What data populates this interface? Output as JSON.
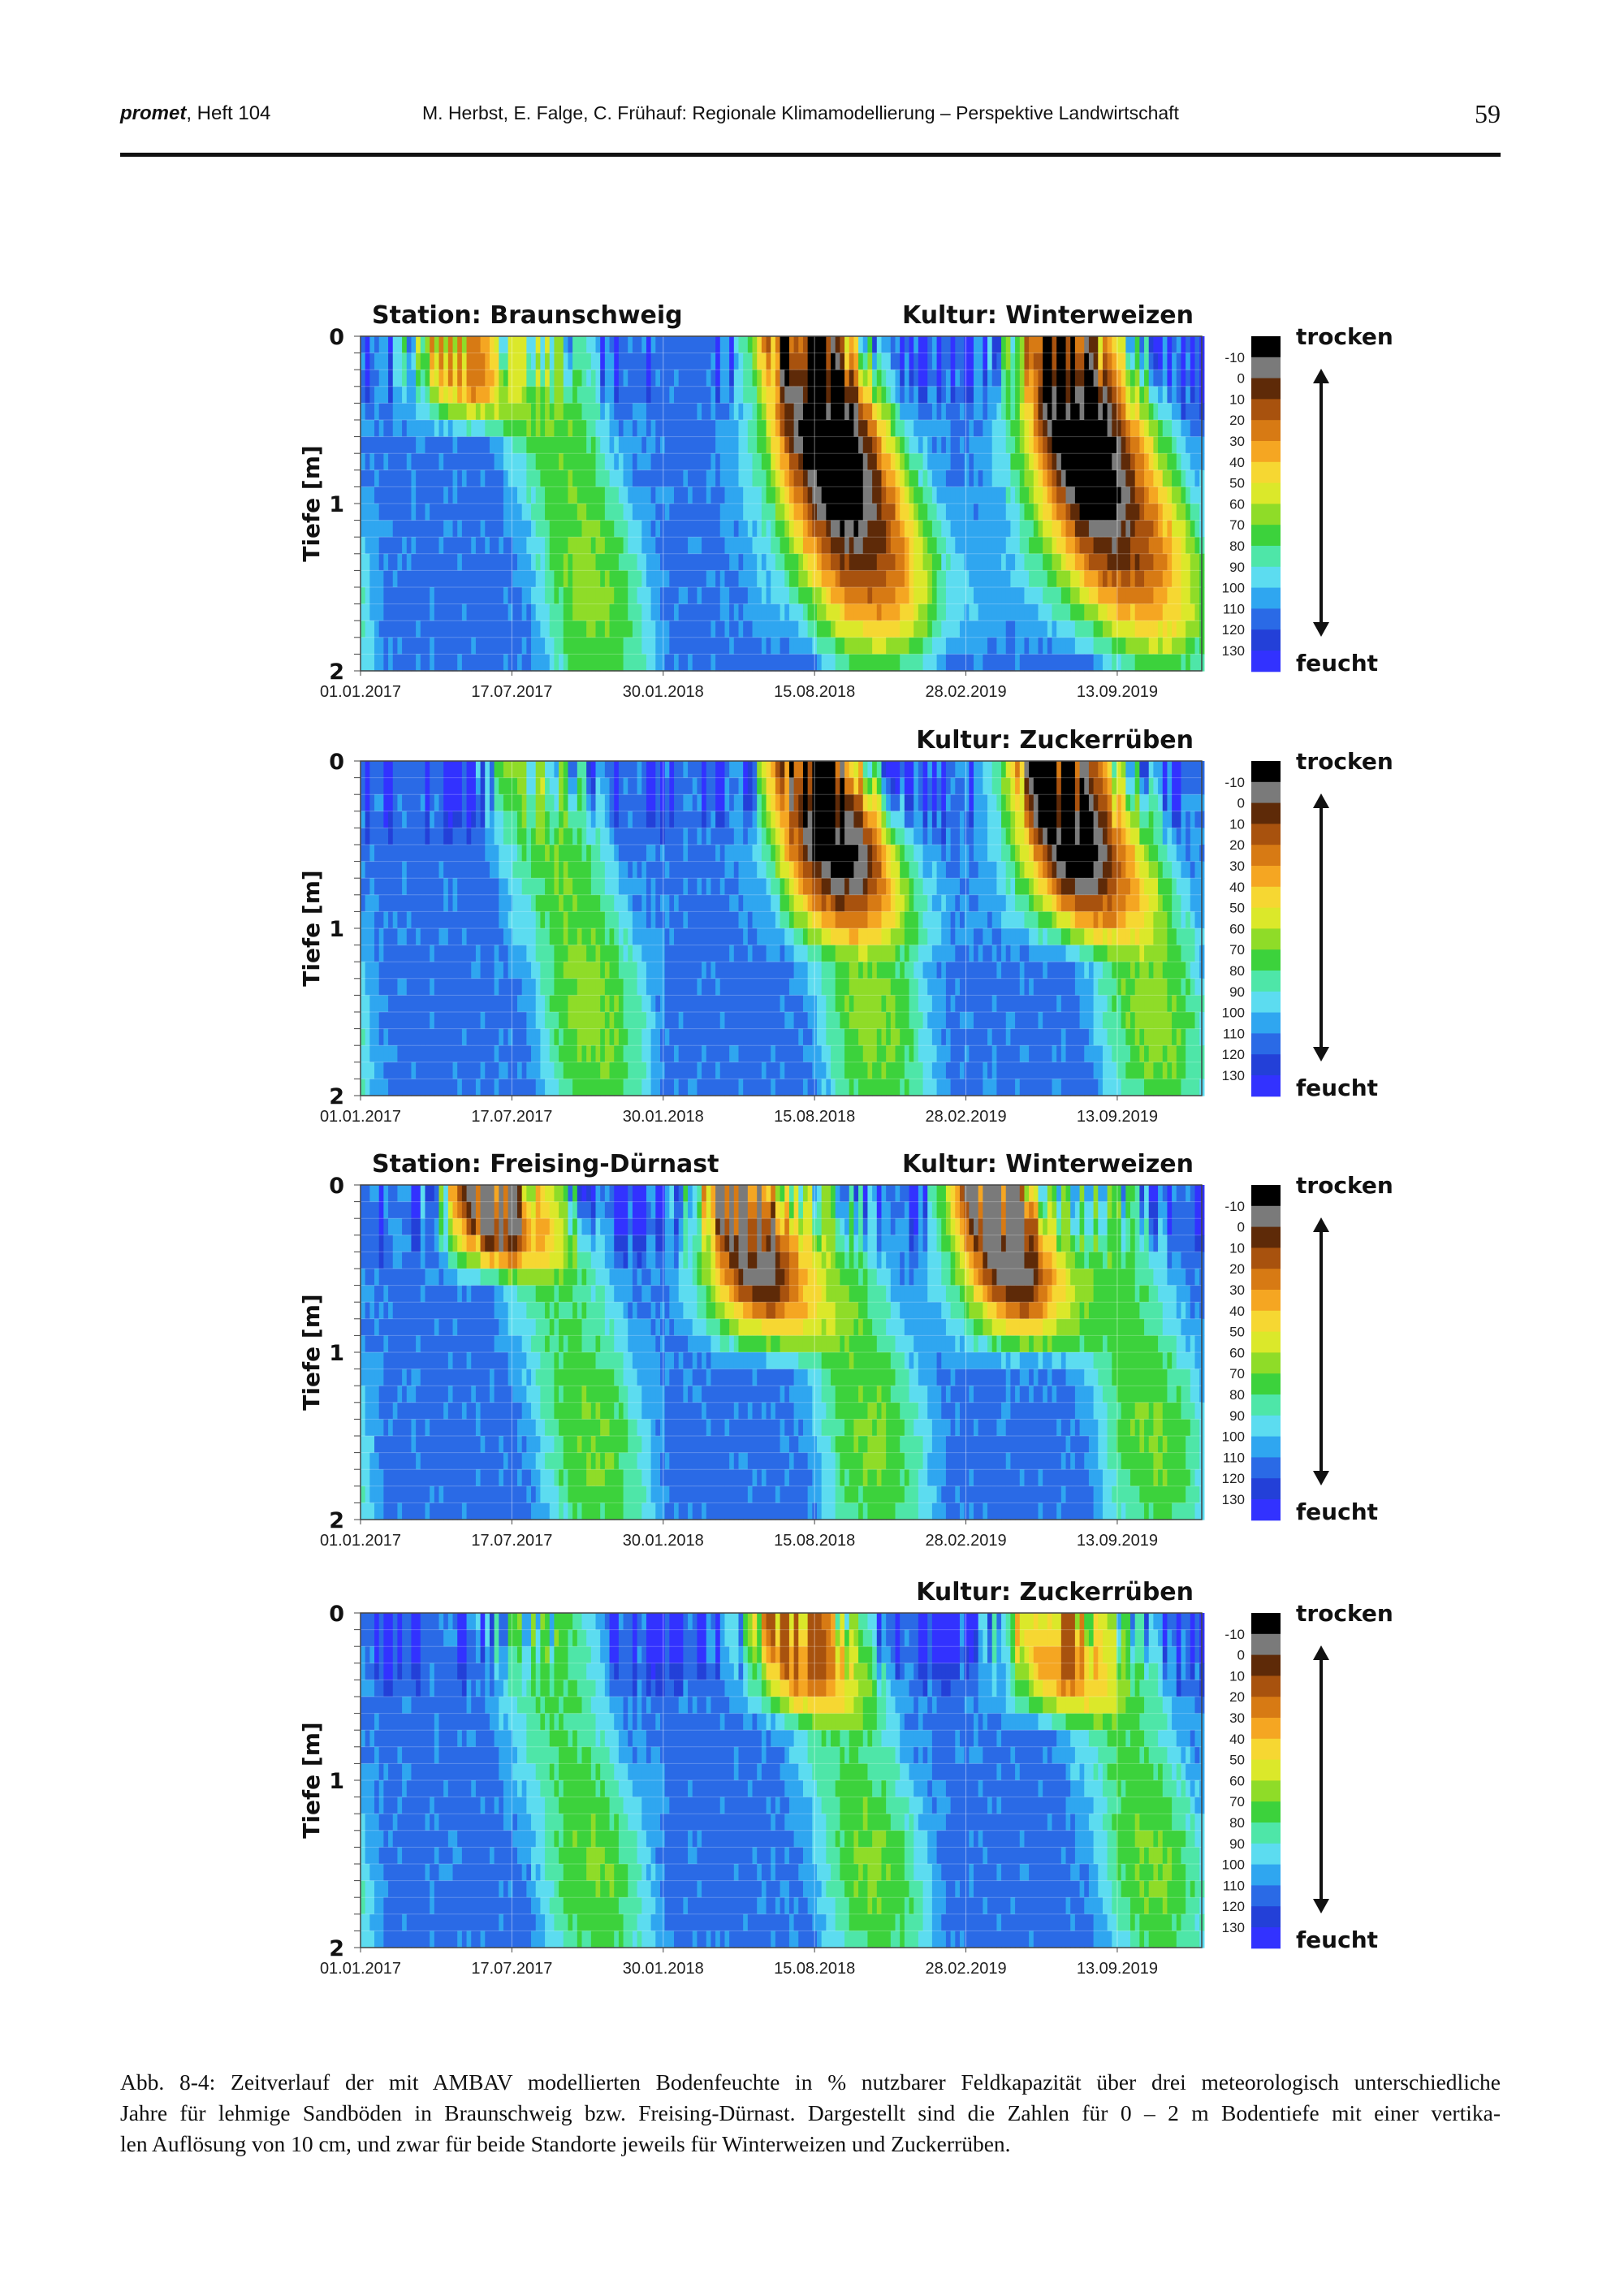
{
  "header": {
    "journal_name": "promet",
    "issue": ", Heft 104",
    "authors_title": "M. Herbst, E. Falge, C. Frühauf: Regionale Klimamodellierung – Perspektive Landwirtschaft",
    "page_number": "59"
  },
  "caption": {
    "line1": "Abb. 8-4: Zeitverlauf der mit AMBAV modellierten Bodenfeuchte in % nutzbarer Feldkapazität über drei meteorologisch unterschiedliche",
    "line2": "Jahre für lehmige Sandböden in Braunschweig bzw. Freising-Dürnast. Dargestellt sind die Zahlen für 0 – 2 m Bodentiefe mit einer vertika-",
    "line3": "len Auflösung von 10 cm, und zwar für beide Standorte jeweils für Winterweizen und Zuckerrüben."
  },
  "chart_data": [
    {
      "type": "heatmap",
      "station_label": "Station: Braunschweig",
      "crop_label": "Kultur: Winterweizen",
      "ylabel": "Tiefe [m]",
      "ylim": [
        0,
        2
      ],
      "y_ticks": [
        "0",
        "1",
        "2"
      ],
      "x_tick_labels": [
        "01.01.2017",
        "17.07.2017",
        "30.01.2018",
        "15.08.2018",
        "28.02.2019",
        "13.09.2019"
      ],
      "x_range_days": [
        0,
        1095
      ],
      "depth_resolution_cm": 10,
      "drought_cores": [
        {
          "center_day": 120,
          "max_depth_m": 0.6,
          "min_value": 30
        },
        {
          "center_day": 575,
          "max_depth_m": 1.95,
          "min_value": -10
        },
        {
          "center_day": 905,
          "max_depth_m": 1.95,
          "min_value": -10
        }
      ]
    },
    {
      "type": "heatmap",
      "station_label": "",
      "crop_label": "Kultur: Zuckerrüben",
      "ylabel": "Tiefe [m]",
      "ylim": [
        0,
        2
      ],
      "y_ticks": [
        "0",
        "1",
        "2"
      ],
      "x_tick_labels": [
        "01.01.2017",
        "17.07.2017",
        "30.01.2018",
        "15.08.2018",
        "28.02.2019",
        "13.09.2019"
      ],
      "x_range_days": [
        0,
        1095
      ],
      "depth_resolution_cm": 10,
      "drought_cores": [
        {
          "center_day": 590,
          "max_depth_m": 1.2,
          "min_value": -10
        },
        {
          "center_day": 900,
          "max_depth_m": 1.2,
          "min_value": -10
        }
      ]
    },
    {
      "type": "heatmap",
      "station_label": "Station: Freising-Dürnast",
      "crop_label": "Kultur: Winterweizen",
      "ylabel": "Tiefe [m]",
      "ylim": [
        0,
        2
      ],
      "y_ticks": [
        "0",
        "1",
        "2"
      ],
      "x_tick_labels": [
        "01.01.2017",
        "17.07.2017",
        "30.01.2018",
        "15.08.2018",
        "28.02.2019",
        "13.09.2019"
      ],
      "x_range_days": [
        0,
        1095
      ],
      "depth_resolution_cm": 10,
      "drought_cores": [
        {
          "center_day": 165,
          "max_depth_m": 0.6,
          "min_value": 0
        },
        {
          "center_day": 490,
          "max_depth_m": 1.1,
          "min_value": 0
        },
        {
          "center_day": 820,
          "max_depth_m": 1.1,
          "min_value": 0
        }
      ]
    },
    {
      "type": "heatmap",
      "station_label": "",
      "crop_label": "Kultur: Zuckerrüben",
      "ylabel": "Tiefe [m]",
      "ylim": [
        0,
        2
      ],
      "y_ticks": [
        "0",
        "1",
        "2"
      ],
      "x_tick_labels": [
        "01.01.2017",
        "17.07.2017",
        "30.01.2018",
        "15.08.2018",
        "28.02.2019",
        "13.09.2019"
      ],
      "x_range_days": [
        0,
        1095
      ],
      "depth_resolution_cm": 10,
      "drought_cores": [
        {
          "center_day": 560,
          "max_depth_m": 0.7,
          "min_value": 20
        },
        {
          "center_day": 890,
          "max_depth_m": 0.7,
          "min_value": 20
        }
      ]
    }
  ],
  "colorbar": {
    "levels": [
      "-10",
      "0",
      "10",
      "20",
      "30",
      "40",
      "50",
      "60",
      "70",
      "80",
      "90",
      "100",
      "110",
      "120",
      "130"
    ],
    "colors": [
      "#000000",
      "#7a7a7a",
      "#5e2a08",
      "#a8520e",
      "#d77a14",
      "#f5a622",
      "#f6d732",
      "#dbe82a",
      "#8fdc28",
      "#3cd23c",
      "#4ee6a8",
      "#5cdcf0",
      "#2fa6f0",
      "#2a6ae6",
      "#2340d8",
      "#3232ff"
    ],
    "top_label": "trocken",
    "bottom_label": "feucht"
  }
}
